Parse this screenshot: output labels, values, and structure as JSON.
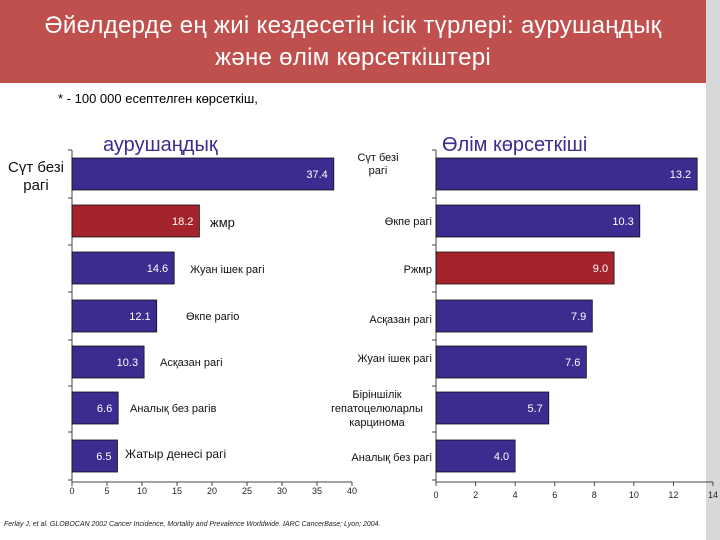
{
  "header": {
    "title_line1": "Әйелдерде  ең  жиі кездесетін  ісік түрлері: аурушаңдық",
    "title_line2": "және  өлім  көрсеткіштері"
  },
  "note": "* - 100 000 есептелген  көрсеткіш,",
  "source": "Ferlay J, et al. GLOBOCAN 2002 Cancer Incidence, Mortality and Prevalence Worldwide. IARC CancerBase; Lyon; 2004.",
  "colors": {
    "bar_blue": "#3d2b8f",
    "bar_red": "#a5242b",
    "header": "#c0504d"
  },
  "chart_data": [
    {
      "type": "bar",
      "orientation": "horizontal",
      "title": "аурушаңдық",
      "categories": [
        "Сүт безі рагі",
        "жмр",
        "Жуан ішек  рагі",
        "Өкпе рагіо",
        "Асқазан  рагі",
        "Аналық  без рагів",
        "Жатыр  денесі  рагі"
      ],
      "values": [
        37.4,
        18.2,
        14.6,
        12.1,
        10.3,
        6.6,
        6.5
      ],
      "value_labels": [
        "37.4",
        "18.2",
        "14.6",
        "12.1",
        "10.3",
        "6.6",
        "6.5"
      ],
      "highlight_index": 1,
      "xlim": [
        0,
        40
      ],
      "xticks": [
        "0",
        "5",
        "10",
        "15",
        "20",
        "25",
        "30",
        "35",
        "40"
      ]
    },
    {
      "type": "bar",
      "orientation": "horizontal",
      "title": "Өлім  көрсеткіші",
      "categories": [
        "Сүт  безі рагі",
        "Өкпе  рагі",
        "Ржмр",
        "Асқазан рагі",
        "Жуан  ішек  рагі",
        "Біріншілік гепатоцелюларлы карцинома",
        "Аналық без рагі"
      ],
      "values": [
        13.2,
        10.3,
        9.0,
        7.9,
        7.6,
        5.7,
        4.0
      ],
      "value_labels": [
        "13.2",
        "10.3",
        "9.0",
        "7.9",
        "7.6",
        "5.7",
        "4.0"
      ],
      "highlight_index": 2,
      "xlim": [
        0,
        14
      ],
      "xticks": [
        "0",
        "2",
        "4",
        "6",
        "8",
        "10",
        "12",
        "14"
      ]
    }
  ]
}
